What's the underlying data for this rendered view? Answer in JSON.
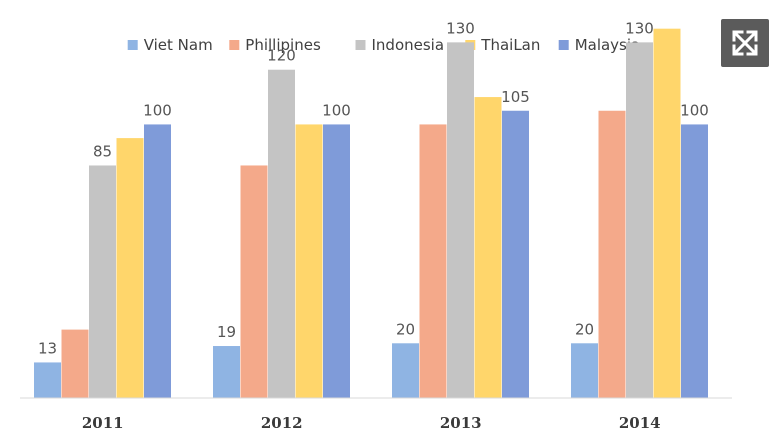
{
  "chart_data": {
    "type": "bar",
    "categories": [
      "2011",
      "2012",
      "2013",
      "2014"
    ],
    "series": [
      {
        "name": "Viet Nam",
        "color": "#8fb4e3",
        "values": [
          13,
          19,
          20,
          20
        ]
      },
      {
        "name": "Phillipines",
        "color": "#f4a98a",
        "values": [
          25,
          85,
          100,
          105
        ]
      },
      {
        "name": "Indonesia",
        "color": "#c4c4c4",
        "values": [
          85,
          120,
          130,
          130
        ]
      },
      {
        "name": "ThaiLan",
        "color": "#ffd66b",
        "values": [
          95,
          100,
          110,
          135
        ]
      },
      {
        "name": "Malaysia",
        "color": "#7f9bd9",
        "values": [
          100,
          100,
          105,
          100
        ]
      }
    ],
    "data_labels": [
      {
        "category": "2011",
        "series": "Viet Nam",
        "text": "13"
      },
      {
        "category": "2011",
        "series": "Indonesia",
        "text": "85"
      },
      {
        "category": "2011",
        "series": "Malaysia",
        "text": "100"
      },
      {
        "category": "2012",
        "series": "Viet Nam",
        "text": "19"
      },
      {
        "category": "2012",
        "series": "Indonesia",
        "text": "120"
      },
      {
        "category": "2012",
        "series": "Malaysia",
        "text": "100"
      },
      {
        "category": "2013",
        "series": "Viet Nam",
        "text": "20"
      },
      {
        "category": "2013",
        "series": "Indonesia",
        "text": "130"
      },
      {
        "category": "2013",
        "series": "Malaysia",
        "text": "105"
      },
      {
        "category": "2014",
        "series": "Viet Nam",
        "text": "20"
      },
      {
        "category": "2014",
        "series": "Indonesia",
        "text": "130"
      },
      {
        "category": "2014",
        "series": "Malaysia",
        "text": "100"
      }
    ],
    "title": "",
    "xlabel": "",
    "ylabel": "",
    "ylim": [
      0,
      140
    ],
    "legend_position": "top",
    "grid": false
  },
  "ui": {
    "expand_icon": "expand-arrows-icon"
  }
}
